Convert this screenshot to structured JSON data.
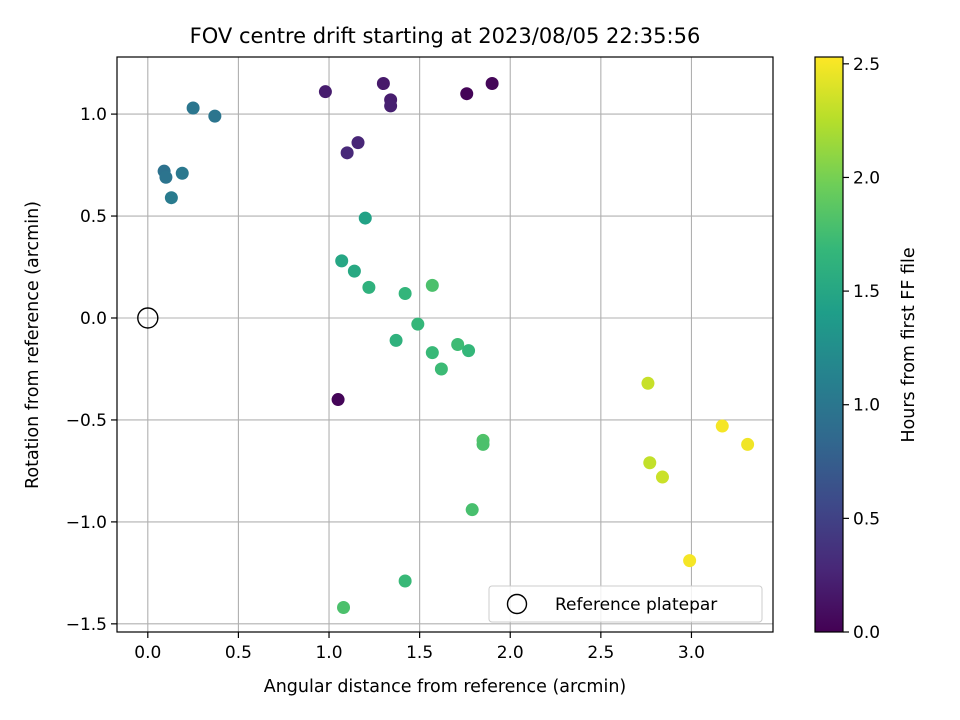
{
  "chart_data": {
    "type": "scatter",
    "title": "FOV centre drift starting at 2023/08/05 22:35:56",
    "xlabel": "Angular distance from reference (arcmin)",
    "ylabel": "Rotation from reference (arcmin)",
    "xlim": [
      -0.17,
      3.45
    ],
    "ylim": [
      -1.54,
      1.28
    ],
    "xticks": [
      0.0,
      0.5,
      1.0,
      1.5,
      2.0,
      2.5,
      3.0
    ],
    "xtick_labels": [
      "0.0",
      "0.5",
      "1.0",
      "1.5",
      "2.0",
      "2.5",
      "3.0"
    ],
    "yticks": [
      -1.5,
      -1.0,
      -0.5,
      0.0,
      0.5,
      1.0
    ],
    "ytick_labels": [
      "−1.5",
      "−1.0",
      "−0.5",
      "0.0",
      "0.5",
      "1.0"
    ],
    "grid": true,
    "colormap": "viridis",
    "colorbar": {
      "label": "Hours from first FF file",
      "range": [
        0.0,
        2.53
      ],
      "ticks": [
        0.0,
        0.5,
        1.0,
        1.5,
        2.0,
        2.5
      ],
      "tick_labels": [
        "0.0",
        "0.5",
        "1.0",
        "1.5",
        "2.0",
        "2.5"
      ]
    },
    "reference_point": {
      "x": 0.0,
      "y": 0.0,
      "label": "Reference platepar"
    },
    "legend": {
      "position": "lower-right",
      "entries": [
        "Reference platepar"
      ]
    },
    "points": [
      {
        "x": 0.98,
        "y": 1.11,
        "hours": 0.2
      },
      {
        "x": 1.3,
        "y": 1.15,
        "hours": 0.18
      },
      {
        "x": 1.34,
        "y": 1.07,
        "hours": 0.2
      },
      {
        "x": 1.34,
        "y": 1.04,
        "hours": 0.22
      },
      {
        "x": 1.76,
        "y": 1.1,
        "hours": 0.02
      },
      {
        "x": 1.9,
        "y": 1.15,
        "hours": 0.04
      },
      {
        "x": 1.16,
        "y": 0.86,
        "hours": 0.27
      },
      {
        "x": 1.1,
        "y": 0.81,
        "hours": 0.29
      },
      {
        "x": 1.05,
        "y": -0.4,
        "hours": 0.03
      },
      {
        "x": 0.25,
        "y": 1.03,
        "hours": 1.0
      },
      {
        "x": 0.37,
        "y": 0.99,
        "hours": 0.98
      },
      {
        "x": 0.09,
        "y": 0.72,
        "hours": 0.95
      },
      {
        "x": 0.1,
        "y": 0.69,
        "hours": 0.97
      },
      {
        "x": 0.19,
        "y": 0.71,
        "hours": 1.02
      },
      {
        "x": 0.13,
        "y": 0.59,
        "hours": 1.05
      },
      {
        "x": 1.2,
        "y": 0.49,
        "hours": 1.45
      },
      {
        "x": 1.07,
        "y": 0.28,
        "hours": 1.5
      },
      {
        "x": 1.14,
        "y": 0.23,
        "hours": 1.52
      },
      {
        "x": 1.22,
        "y": 0.15,
        "hours": 1.62
      },
      {
        "x": 1.42,
        "y": 0.12,
        "hours": 1.66
      },
      {
        "x": 1.57,
        "y": 0.16,
        "hours": 1.8
      },
      {
        "x": 1.49,
        "y": -0.03,
        "hours": 1.68
      },
      {
        "x": 1.37,
        "y": -0.11,
        "hours": 1.62
      },
      {
        "x": 1.57,
        "y": -0.17,
        "hours": 1.7
      },
      {
        "x": 1.71,
        "y": -0.13,
        "hours": 1.73
      },
      {
        "x": 1.77,
        "y": -0.16,
        "hours": 1.68
      },
      {
        "x": 1.62,
        "y": -0.25,
        "hours": 1.72
      },
      {
        "x": 1.85,
        "y": -0.6,
        "hours": 1.82
      },
      {
        "x": 1.85,
        "y": -0.62,
        "hours": 1.8
      },
      {
        "x": 1.79,
        "y": -0.94,
        "hours": 1.78
      },
      {
        "x": 1.42,
        "y": -1.29,
        "hours": 1.7
      },
      {
        "x": 1.08,
        "y": -1.42,
        "hours": 1.8
      },
      {
        "x": 2.76,
        "y": -0.32,
        "hours": 2.32
      },
      {
        "x": 2.77,
        "y": -0.71,
        "hours": 2.3
      },
      {
        "x": 2.84,
        "y": -0.78,
        "hours": 2.33
      },
      {
        "x": 3.17,
        "y": -0.53,
        "hours": 2.5
      },
      {
        "x": 3.31,
        "y": -0.62,
        "hours": 2.48
      },
      {
        "x": 2.99,
        "y": -1.19,
        "hours": 2.5
      }
    ]
  }
}
